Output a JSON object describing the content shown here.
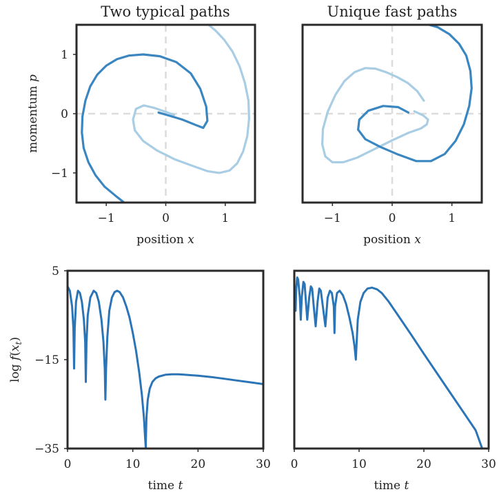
{
  "colors": {
    "dark": "#3a86c0",
    "light": "#a8cde4",
    "loss": "#2b74b6"
  },
  "chart_data": [
    {
      "type": "line",
      "title": "Two typical paths",
      "xlabel": "position x",
      "ylabel": "momentum p",
      "xlim": [
        -1.5,
        1.5
      ],
      "ylim": [
        -1.5,
        1.5
      ],
      "xticks": [
        -1,
        0,
        1
      ],
      "xtick_labels": [
        "−1",
        "0",
        "1"
      ],
      "yticks": [
        -1,
        0,
        1
      ],
      "ytick_labels": [
        "−1",
        "0",
        "1"
      ],
      "grid": false,
      "guides": {
        "x": 0,
        "y": 0
      },
      "series": [
        {
          "color": "dark",
          "x": [
            -0.12,
            0.05,
            0.28,
            0.5,
            0.63,
            0.7,
            0.68,
            0.58,
            0.42,
            0.18,
            -0.1,
            -0.38,
            -0.62,
            -0.82,
            -1.0,
            -1.15,
            -1.27,
            -1.35,
            -1.4,
            -1.41,
            -1.38,
            -1.3,
            -1.18,
            -1.03,
            -0.85,
            -0.7
          ],
          "y": [
            0.02,
            -0.03,
            -0.1,
            -0.19,
            -0.24,
            -0.12,
            0.12,
            0.42,
            0.68,
            0.87,
            0.97,
            1.0,
            0.98,
            0.92,
            0.81,
            0.66,
            0.46,
            0.22,
            -0.05,
            -0.32,
            -0.58,
            -0.82,
            -1.04,
            -1.23,
            -1.38,
            -1.5
          ]
        },
        {
          "color": "light",
          "x": [
            0.14,
            0.0,
            -0.2,
            -0.37,
            -0.5,
            -0.55,
            -0.52,
            -0.38,
            -0.15,
            0.15,
            0.45,
            0.7,
            0.9,
            1.07,
            1.2,
            1.3,
            1.37,
            1.4,
            1.39,
            1.33,
            1.24,
            1.12,
            0.98,
            0.84,
            0.72
          ],
          "y": [
            -0.02,
            0.03,
            0.1,
            0.14,
            0.08,
            -0.1,
            -0.28,
            -0.46,
            -0.62,
            -0.77,
            -0.88,
            -0.97,
            -1.0,
            -0.96,
            -0.84,
            -0.64,
            -0.38,
            -0.08,
            0.22,
            0.52,
            0.8,
            1.05,
            1.25,
            1.4,
            1.5
          ]
        }
      ]
    },
    {
      "type": "line",
      "title": "Unique fast paths",
      "xlabel": "position x",
      "ylabel": "",
      "xlim": [
        -1.5,
        1.5
      ],
      "ylim": [
        -1.5,
        1.5
      ],
      "xticks": [
        -1,
        0,
        1
      ],
      "xtick_labels": [
        "−1",
        "0",
        "1"
      ],
      "yticks": [],
      "ytick_labels": [],
      "grid": false,
      "guides": {
        "x": 0,
        "y": 0
      },
      "series": [
        {
          "color": "light",
          "x": [
            0.37,
            0.52,
            0.6,
            0.58,
            0.48,
            0.28,
            0.0,
            -0.3,
            -0.58,
            -0.82,
            -1.0,
            -1.12,
            -1.17,
            -1.16,
            -1.08,
            -0.95,
            -0.8,
            -0.63,
            -0.45,
            -0.28,
            -0.1,
            0.08,
            0.26,
            0.42,
            0.53
          ],
          "y": [
            0.04,
            -0.03,
            -0.1,
            -0.18,
            -0.25,
            -0.32,
            -0.45,
            -0.6,
            -0.74,
            -0.82,
            -0.82,
            -0.72,
            -0.52,
            -0.26,
            0.03,
            0.32,
            0.55,
            0.7,
            0.77,
            0.76,
            0.7,
            0.62,
            0.52,
            0.38,
            0.22
          ]
        },
        {
          "color": "dark",
          "x": [
            0.27,
            0.1,
            -0.15,
            -0.4,
            -0.55,
            -0.57,
            -0.45,
            -0.2,
            0.1,
            0.4,
            0.65,
            0.88,
            1.06,
            1.2,
            1.29,
            1.33,
            1.31,
            1.24,
            1.12,
            0.96,
            0.76,
            0.55
          ],
          "y": [
            0.02,
            0.11,
            0.13,
            0.05,
            -0.1,
            -0.27,
            -0.43,
            -0.56,
            -0.69,
            -0.8,
            -0.8,
            -0.68,
            -0.46,
            -0.18,
            0.13,
            0.43,
            0.72,
            0.98,
            1.18,
            1.34,
            1.46,
            1.52
          ]
        }
      ]
    },
    {
      "type": "line",
      "title": "",
      "xlabel": "time t",
      "ylabel": "log f(xₜ)",
      "xlim": [
        0,
        30
      ],
      "ylim": [
        -35,
        5
      ],
      "xticks": [
        0,
        10,
        20,
        30
      ],
      "xtick_labels": [
        "0",
        "10",
        "20",
        "30"
      ],
      "yticks": [
        -35,
        -15,
        5
      ],
      "ytick_labels": [
        "−35",
        "−15",
        "5"
      ],
      "grid": false,
      "series": [
        {
          "color": "loss",
          "x": [
            0,
            0.35,
            0.7,
            0.9,
            1.0,
            1.1,
            1.3,
            1.6,
            1.9,
            2.2,
            2.5,
            2.7,
            2.8,
            2.9,
            3.1,
            3.5,
            4.0,
            4.4,
            4.8,
            5.2,
            5.5,
            5.7,
            5.8,
            5.9,
            6.1,
            6.4,
            6.8,
            7.2,
            7.6,
            8.0,
            8.5,
            9.0,
            9.5,
            10.0,
            10.5,
            11.0,
            11.4,
            11.7,
            11.9,
            12.0,
            12.0,
            12.1,
            12.3,
            12.6,
            13.0,
            13.5,
            14.0,
            15.0,
            16.0,
            17.0,
            18.0,
            19.0,
            20.0,
            22.0,
            24.0,
            26.0,
            28.0,
            30.0
          ],
          "y": [
            1.5,
            0.5,
            -3.0,
            -8.0,
            -17.0,
            -8.0,
            -2.0,
            0.5,
            0.0,
            -2.0,
            -6.0,
            -11.0,
            -20.0,
            -11.0,
            -5.0,
            -1.0,
            0.5,
            0.0,
            -2.0,
            -6.0,
            -11.0,
            -17.0,
            -24.0,
            -17.0,
            -10.0,
            -4.0,
            -1.0,
            0.2,
            0.5,
            0.2,
            -1.0,
            -3.0,
            -5.5,
            -9.0,
            -13.0,
            -18.0,
            -23.0,
            -28.0,
            -33.0,
            -35.0,
            -33.5,
            -28.0,
            -24.0,
            -21.5,
            -20.0,
            -19.2,
            -18.8,
            -18.4,
            -18.3,
            -18.3,
            -18.4,
            -18.5,
            -18.6,
            -18.9,
            -19.3,
            -19.7,
            -20.1,
            -20.5
          ]
        }
      ]
    },
    {
      "type": "line",
      "title": "",
      "xlabel": "time t",
      "ylabel": "",
      "xlim": [
        0,
        30
      ],
      "ylim": [
        -35,
        5
      ],
      "xticks": [
        0,
        10,
        20,
        30
      ],
      "xtick_labels": [
        "0",
        "10",
        "20",
        "30"
      ],
      "yticks": [],
      "ytick_labels": [],
      "grid": false,
      "series": [
        {
          "color": "loss",
          "x": [
            0.2,
            0.3,
            0.45,
            0.6,
            0.85,
            1.0,
            1.15,
            1.4,
            1.6,
            1.75,
            2.0,
            2.3,
            2.55,
            2.75,
            3.0,
            3.3,
            3.6,
            3.85,
            4.1,
            4.4,
            4.8,
            5.15,
            5.5,
            5.8,
            6.1,
            6.2,
            6.3,
            6.6,
            7.0,
            7.5,
            8.0,
            8.5,
            9.0,
            9.3,
            9.5,
            9.6,
            9.8,
            10.2,
            10.7,
            11.3,
            12.0,
            12.8,
            13.5,
            14.5,
            16.0,
            18.0,
            20.0,
            22.0,
            24.0,
            26.0,
            28.0,
            29.0
          ],
          "y": [
            -4.0,
            1.0,
            3.5,
            3.0,
            -1.0,
            -6.0,
            -1.0,
            2.5,
            2.0,
            -1.0,
            -6.0,
            -1.0,
            1.5,
            1.0,
            -3.0,
            -7.5,
            -2.0,
            1.0,
            0.5,
            -3.0,
            -7.5,
            -1.0,
            0.5,
            0.0,
            -3.0,
            -9.0,
            -3.0,
            0.0,
            0.5,
            -0.5,
            -2.5,
            -5.5,
            -9.0,
            -12.0,
            -15.0,
            -12.0,
            -6.0,
            -2.0,
            0.0,
            1.0,
            1.2,
            0.8,
            0.0,
            -1.8,
            -5.0,
            -9.3,
            -13.7,
            -18.0,
            -22.3,
            -26.6,
            -30.9,
            -35.0
          ]
        }
      ]
    }
  ]
}
